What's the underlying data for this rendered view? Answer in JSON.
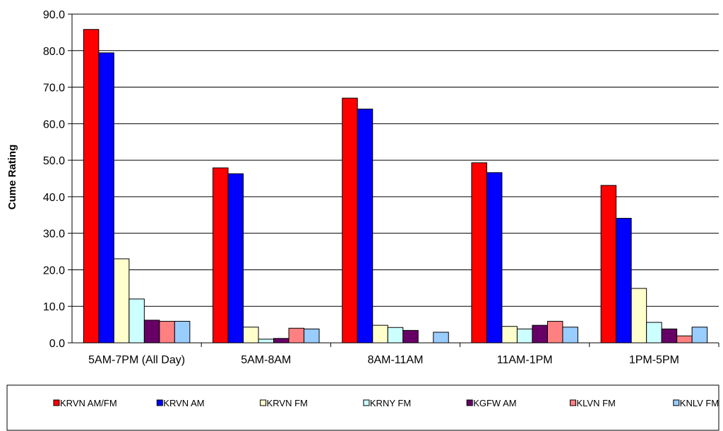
{
  "chart_data": {
    "type": "bar",
    "title": "",
    "xlabel": "",
    "ylabel": "Cume Rating",
    "ylim": [
      0,
      90
    ],
    "yticks": [
      "0.0",
      "10.0",
      "20.0",
      "30.0",
      "40.0",
      "50.0",
      "60.0",
      "70.0",
      "80.0",
      "90.0"
    ],
    "grid": true,
    "legend_position": "bottom",
    "categories": [
      "5AM-7PM (All Day)",
      "5AM-8AM",
      "8AM-11AM",
      "11AM-1PM",
      "1PM-5PM"
    ],
    "series": [
      {
        "name": "KRVN AM/FM",
        "color": "#ff0000",
        "values": [
          85.8,
          47.9,
          67.0,
          49.3,
          43.1
        ]
      },
      {
        "name": "KRVN AM",
        "color": "#0000ff",
        "values": [
          79.4,
          46.3,
          64.0,
          46.6,
          34.1
        ]
      },
      {
        "name": "KRVN FM",
        "color": "#ffffcc",
        "values": [
          23.0,
          4.3,
          4.8,
          4.5,
          14.9
        ]
      },
      {
        "name": "KRNY FM",
        "color": "#ccffff",
        "values": [
          12.0,
          1.0,
          4.2,
          3.8,
          5.6
        ]
      },
      {
        "name": "KGFW AM",
        "color": "#660066",
        "values": [
          6.2,
          1.2,
          3.4,
          4.8,
          3.8
        ]
      },
      {
        "name": "KLVN FM",
        "color": "#ff8080",
        "values": [
          5.9,
          4.0,
          0.0,
          5.9,
          1.9
        ]
      },
      {
        "name": "KNLV FM",
        "color": "#99ccff",
        "values": [
          5.9,
          3.8,
          2.9,
          4.3,
          4.3
        ]
      }
    ]
  }
}
